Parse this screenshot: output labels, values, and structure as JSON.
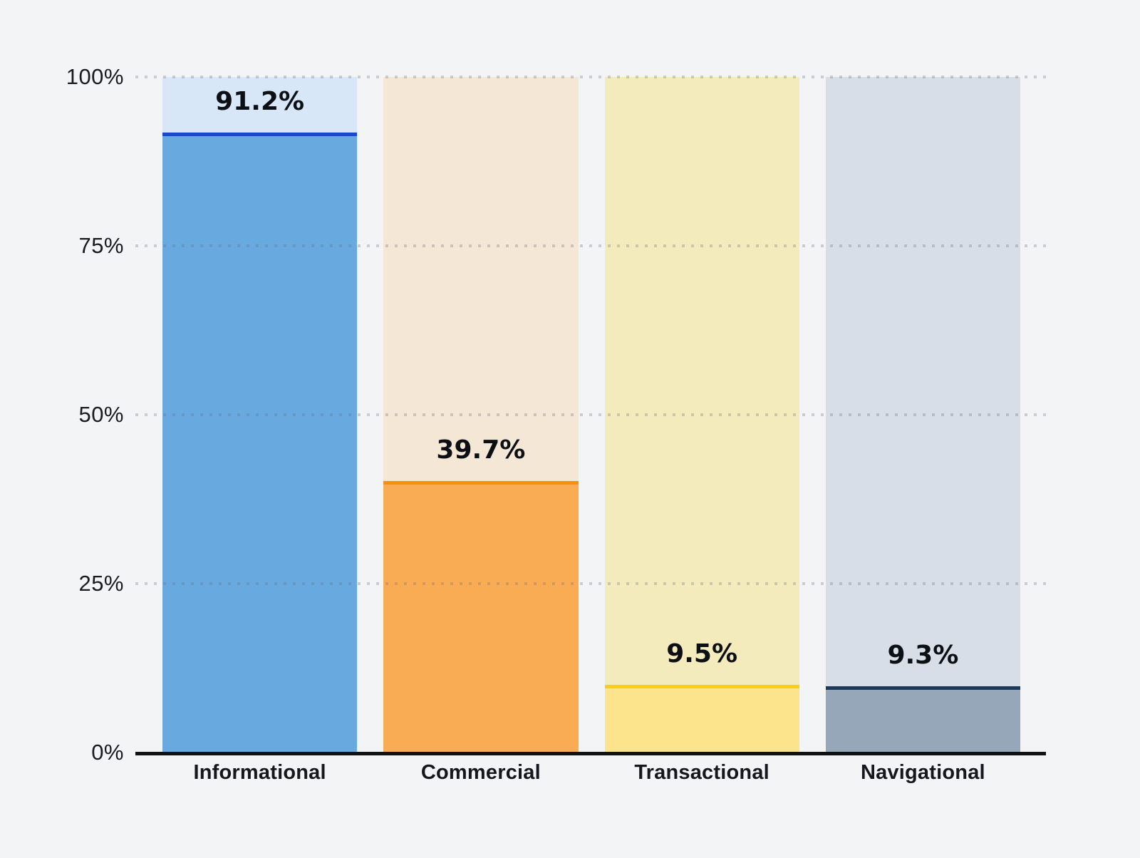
{
  "chart_data": {
    "type": "bar",
    "title": "",
    "xlabel": "",
    "ylabel": "",
    "categories": [
      "Informational",
      "Commercial",
      "Transactional",
      "Navigational"
    ],
    "values": [
      91.2,
      39.7,
      9.5,
      9.3
    ],
    "value_labels": [
      "91.2%",
      "39.7%",
      "9.5%",
      "9.3%"
    ],
    "ylim": [
      0,
      100
    ],
    "y_ticks": [
      {
        "value": 100,
        "label": "100%"
      },
      {
        "value": 75,
        "label": "75%"
      },
      {
        "value": 50,
        "label": "50%"
      },
      {
        "value": 25,
        "label": "25%"
      },
      {
        "value": 0,
        "label": "0%"
      }
    ],
    "grid": "horizontal-dotted",
    "legend_position": "none",
    "bar_style": "value fill over full-height 100% track with accent top border",
    "bar_colors": [
      {
        "track": "#d7e7f8",
        "fill": "#68a9e0",
        "accent": "#1648d1"
      },
      {
        "track": "#f5e7d6",
        "fill": "#f9ac53",
        "accent": "#f9900b"
      },
      {
        "track": "#f4ebbc",
        "fill": "#fce48c",
        "accent": "#f9ce16"
      },
      {
        "track": "#d8dee7",
        "fill": "#97a7ba",
        "accent": "#1c3a5e"
      }
    ]
  },
  "colors": {
    "background": "#f3f4f6",
    "axis_line": "#121212",
    "gridline": "rgba(105,112,125,0.30)",
    "tick_text": "#191b20",
    "label_text": "#14171c",
    "value_text": "#0c0f14"
  }
}
